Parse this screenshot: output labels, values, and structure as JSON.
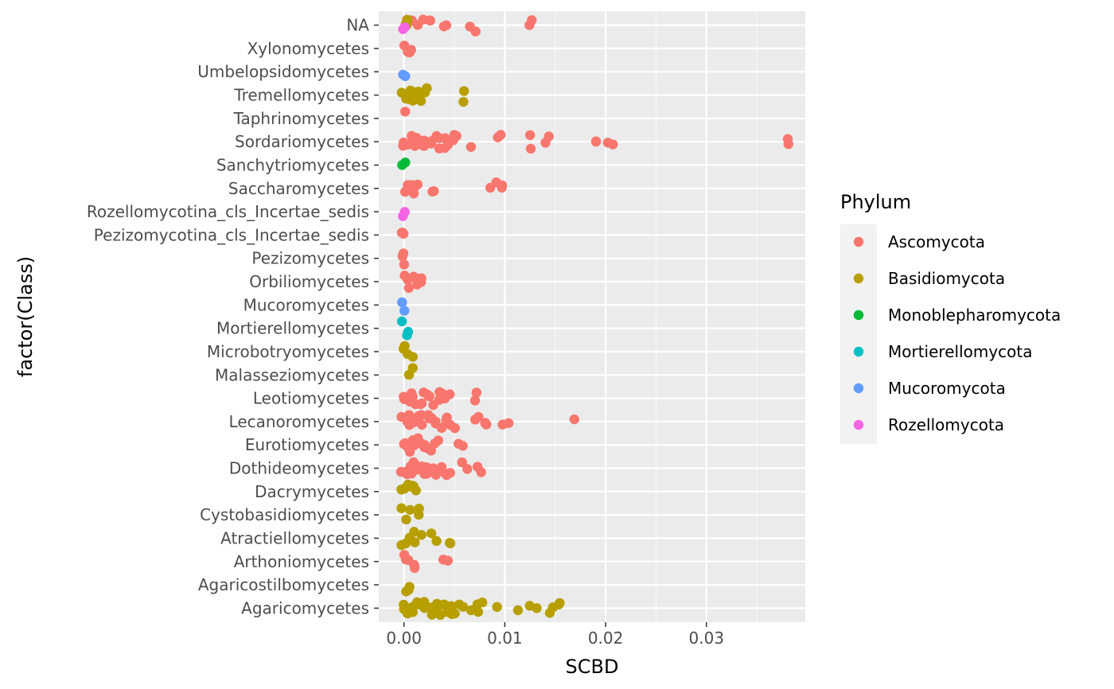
{
  "chart_data": {
    "type": "scatter",
    "xlabel": "SCBD",
    "ylabel": "factor(Class)",
    "xlim": [
      -0.0025,
      0.0398
    ],
    "x_ticks": [
      0.0,
      0.01,
      0.02,
      0.03
    ],
    "x_tick_labels": [
      "0.00",
      "0.01",
      "0.02",
      "0.03"
    ],
    "grid": true,
    "legend": {
      "title": "Phylum",
      "placement": "right",
      "entries": [
        {
          "name": "Ascomycota",
          "color": "#F8766D"
        },
        {
          "name": "Basidiomycota",
          "color": "#B79F00"
        },
        {
          "name": "Monoblepharomycota",
          "color": "#00BA38"
        },
        {
          "name": "Mortierellomycota",
          "color": "#00BFC4"
        },
        {
          "name": "Mucoromycota",
          "color": "#619CFF"
        },
        {
          "name": "Rozellomycota",
          "color": "#F564E3"
        }
      ]
    },
    "categories": [
      "Agaricomycetes",
      "Agaricostilbomycetes",
      "Arthoniomycetes",
      "Atractiellomycetes",
      "Cystobasidiomycetes",
      "Dacrymycetes",
      "Dothideomycetes",
      "Eurotiomycetes",
      "Lecanoromycetes",
      "Leotiomycetes",
      "Malasseziomycetes",
      "Microbotryomycetes",
      "Mortierellomycetes",
      "Mucoromycetes",
      "Orbiliomycetes",
      "Pezizomycetes",
      "Pezizomycotina_cls_Incertae_sedis",
      "Rozellomycotina_cls_Incertae_sedis",
      "Saccharomycetes",
      "Sanchytriomycetes",
      "Sordariomycetes",
      "Taphrinomycetes",
      "Tremellomycetes",
      "Umbelopsidomycetes",
      "Xylonomycetes",
      "NA"
    ],
    "series": [
      {
        "category": "Agaricomycetes",
        "phylum": "Basidiomycota",
        "x": [
          0.0,
          0.0002,
          0.0004,
          0.0006,
          0.0008,
          0.001,
          0.0012,
          0.0015,
          0.0018,
          0.002,
          0.0022,
          0.0025,
          0.0028,
          0.003,
          0.0033,
          0.0035,
          0.0038,
          0.004,
          0.0042,
          0.0045,
          0.0048,
          0.005,
          0.0052,
          0.0055,
          0.0058,
          0.0065,
          0.0075,
          0.0078,
          0.0095,
          0.0112,
          0.0122,
          0.0132,
          0.0145,
          0.0148,
          0.0155,
          0.0153,
          0.0075
        ]
      },
      {
        "category": "Agaricostilbomycetes",
        "phylum": "Basidiomycota",
        "x": [
          0.0,
          0.0002,
          0.0004
        ]
      },
      {
        "category": "Arthoniomycetes",
        "phylum": "Ascomycota",
        "x": [
          0.0,
          0.0003,
          0.0006,
          0.0009,
          0.0012,
          0.0042,
          0.0043
        ]
      },
      {
        "category": "Atractiellomycetes",
        "phylum": "Basidiomycota",
        "x": [
          0.0,
          0.0002,
          0.0005,
          0.0013,
          0.0015,
          0.003,
          0.0031,
          0.0045,
          0.0047,
          0.0012
        ]
      },
      {
        "category": "Cystobasidiomycetes",
        "phylum": "Basidiomycota",
        "x": [
          0.0,
          0.0002,
          0.0004,
          0.0015,
          0.0016
        ]
      },
      {
        "category": "Dacrymycetes",
        "phylum": "Basidiomycota",
        "x": [
          0.0,
          0.0002,
          0.0004,
          0.0006,
          0.0008,
          0.001,
          0.0012
        ]
      },
      {
        "category": "Dothideomycetes",
        "phylum": "Ascomycota",
        "x": [
          0.0,
          0.0002,
          0.0004,
          0.0006,
          0.0008,
          0.001,
          0.0012,
          0.0014,
          0.0016,
          0.0018,
          0.002,
          0.0022,
          0.0025,
          0.0028,
          0.003,
          0.0032,
          0.0035,
          0.0038,
          0.004,
          0.0042,
          0.0045,
          0.0058,
          0.006,
          0.0072,
          0.0075
        ]
      },
      {
        "category": "Eurotiomycetes",
        "phylum": "Ascomycota",
        "x": [
          0.0,
          0.0002,
          0.0004,
          0.0006,
          0.0008,
          0.001,
          0.0012,
          0.0015,
          0.0018,
          0.002,
          0.0022,
          0.0025,
          0.0028,
          0.003,
          0.0032,
          0.0055,
          0.0056
        ]
      },
      {
        "category": "Lecanoromycetes",
        "phylum": "Ascomycota",
        "x": [
          0.0,
          0.0002,
          0.0004,
          0.0006,
          0.0008,
          0.001,
          0.0012,
          0.0015,
          0.0018,
          0.002,
          0.0022,
          0.0025,
          0.0028,
          0.003,
          0.0033,
          0.0035,
          0.0038,
          0.004,
          0.0045,
          0.0048,
          0.005,
          0.0072,
          0.0075,
          0.0078,
          0.008,
          0.0082,
          0.01,
          0.0101,
          0.017
        ]
      },
      {
        "category": "Leotiomycetes",
        "phylum": "Ascomycota",
        "x": [
          0.0,
          0.0002,
          0.0004,
          0.0006,
          0.0008,
          0.001,
          0.0012,
          0.0015,
          0.0018,
          0.002,
          0.0022,
          0.0025,
          0.0028,
          0.003,
          0.0033,
          0.0035,
          0.0038,
          0.004,
          0.0042,
          0.0045,
          0.007,
          0.0072
        ]
      },
      {
        "category": "Malasseziomycetes",
        "phylum": "Basidiomycota",
        "x": [
          0.0008,
          0.0009
        ]
      },
      {
        "category": "Microbotryomycetes",
        "phylum": "Basidiomycota",
        "x": [
          0.0,
          0.0002,
          0.0004,
          0.0006
        ]
      },
      {
        "category": "Mortierellomycetes",
        "phylum": "Mortierellomycota",
        "x": [
          0.0,
          0.0001,
          0.0002
        ]
      },
      {
        "category": "Mucoromycetes",
        "phylum": "Mucoromycota",
        "x": [
          0.0,
          0.0001
        ]
      },
      {
        "category": "Orbiliomycetes",
        "phylum": "Ascomycota",
        "x": [
          0.0,
          0.0003,
          0.0006,
          0.0009,
          0.0012,
          0.0015,
          0.0018,
          0.002,
          0.0017
        ]
      },
      {
        "category": "Pezizomycetes",
        "phylum": "Ascomycota",
        "x": [
          0.0,
          0.0001,
          0.0002
        ]
      },
      {
        "category": "Pezizomycotina_cls_Incertae_sedis",
        "phylum": "Ascomycota",
        "x": [
          0.0,
          0.0001,
          0.0002
        ]
      },
      {
        "category": "Rozellomycotina_cls_Incertae_sedis",
        "phylum": "Rozellomycota",
        "x": [
          0.0,
          0.0001
        ]
      },
      {
        "category": "Saccharomycetes",
        "phylum": "Ascomycota",
        "x": [
          0.0,
          0.0002,
          0.0004,
          0.0006,
          0.0008,
          0.001,
          0.0012,
          0.0014,
          0.0028,
          0.003,
          0.0088,
          0.009,
          0.0098,
          0.01
        ]
      },
      {
        "category": "Sanchytriomycetes",
        "phylum": "Monoblepharomycota",
        "x": [
          0.0,
          0.0001
        ]
      },
      {
        "category": "Sordariomycetes",
        "phylum": "Ascomycota",
        "x": [
          0.0,
          0.0002,
          0.0004,
          0.0006,
          0.0008,
          0.001,
          0.0012,
          0.0015,
          0.0018,
          0.002,
          0.0022,
          0.0025,
          0.0028,
          0.003,
          0.0033,
          0.0035,
          0.0038,
          0.004,
          0.0042,
          0.0045,
          0.0048,
          0.005,
          0.0052,
          0.0065,
          0.0095,
          0.0096,
          0.0127,
          0.0128,
          0.0142,
          0.0143,
          0.0192,
          0.0193,
          0.0205,
          0.0206,
          0.0378,
          0.0379
        ]
      },
      {
        "category": "Taphrinomycetes",
        "phylum": "Ascomycota",
        "x": [
          0.0
        ]
      },
      {
        "category": "Tremellomycetes",
        "phylum": "Basidiomycota",
        "x": [
          0.0,
          0.0002,
          0.0004,
          0.0006,
          0.0008,
          0.001,
          0.0012,
          0.0015,
          0.0018,
          0.002,
          0.0022,
          0.0057,
          0.0058
        ]
      },
      {
        "category": "Umbelopsidomycetes",
        "phylum": "Mucoromycota",
        "x": [
          0.0,
          0.0001
        ]
      },
      {
        "category": "Xylonomycetes",
        "phylum": "Ascomycota",
        "x": [
          0.0,
          0.0002,
          0.0004,
          0.0006,
          0.0008
        ]
      },
      {
        "category": "NA",
        "phylum": "Ascomycota",
        "x": [
          0.0,
          0.0002,
          0.0004,
          0.0006,
          0.0008,
          0.001,
          0.0015,
          0.002,
          0.0025,
          0.0028,
          0.0042,
          0.0043,
          0.0068,
          0.0069,
          0.0125,
          0.0126
        ]
      },
      {
        "category": "NA",
        "phylum": "Basidiomycota",
        "x": [
          0.0,
          0.0003,
          0.0006
        ]
      },
      {
        "category": "NA",
        "phylum": "Rozellomycota",
        "x": [
          0.0,
          0.0001
        ]
      }
    ]
  }
}
